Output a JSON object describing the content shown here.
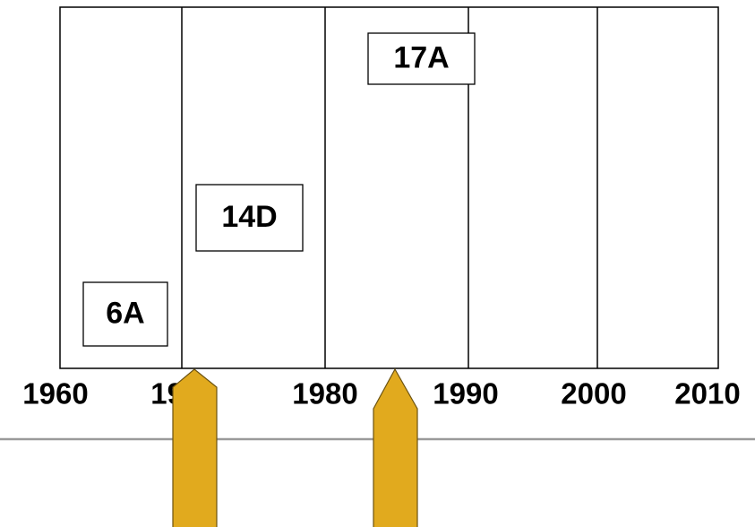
{
  "timeline": {
    "years": [
      "1960",
      "1970",
      "1980",
      "1990",
      "2000",
      "2010"
    ]
  },
  "boxes": [
    {
      "label": "6A"
    },
    {
      "label": "14D"
    },
    {
      "label": "17A"
    }
  ]
}
